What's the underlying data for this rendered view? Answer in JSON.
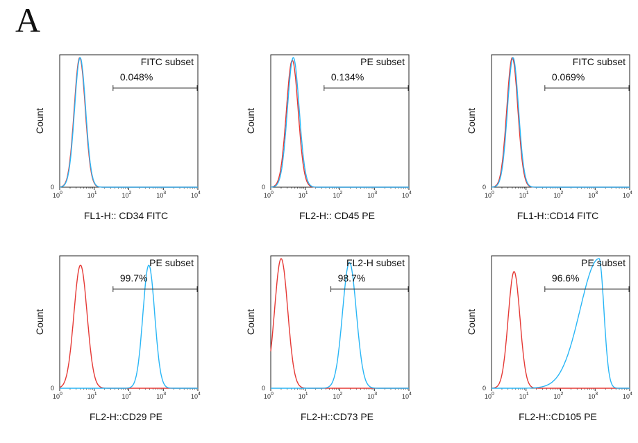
{
  "figure": {
    "panel_label": "A"
  },
  "colors": {
    "control": "#e53935",
    "sample": "#29b6f6",
    "axis": "#222222",
    "gate": "#333333"
  },
  "chart_data": [
    {
      "type": "line",
      "log_x": true,
      "xlim": [
        1,
        10000
      ],
      "ylim": [
        0,
        1
      ],
      "xlabel": "FL1-H:: CD34 FITC",
      "ylabel": "Count",
      "y_zero_label": "0",
      "x_ticks": [
        {
          "base": "10",
          "exp": "0"
        },
        {
          "base": "10",
          "exp": "1"
        },
        {
          "base": "10",
          "exp": "2"
        },
        {
          "base": "10",
          "exp": "3"
        },
        {
          "base": "10",
          "exp": "4"
        }
      ],
      "gate": {
        "label": "FITC subset",
        "percent": "0.048%",
        "x_start": 35,
        "x_end": 10000
      },
      "series": [
        {
          "role": "control",
          "peak_x": 3.8,
          "peak_height": 1.0,
          "log_width": 0.16
        },
        {
          "role": "sample",
          "peak_x": 3.9,
          "peak_height": 1.0,
          "log_width": 0.16
        }
      ]
    },
    {
      "type": "line",
      "log_x": true,
      "xlim": [
        1,
        10000
      ],
      "ylim": [
        0,
        1
      ],
      "xlabel": "FL2-H:: CD45 PE",
      "ylabel": "Count",
      "y_zero_label": "0",
      "x_ticks": [
        {
          "base": "10",
          "exp": "0"
        },
        {
          "base": "10",
          "exp": "1"
        },
        {
          "base": "10",
          "exp": "2"
        },
        {
          "base": "10",
          "exp": "3"
        },
        {
          "base": "10",
          "exp": "4"
        }
      ],
      "gate": {
        "label": "PE subset",
        "percent": "0.134%",
        "x_start": 35,
        "x_end": 10000
      },
      "series": [
        {
          "role": "control",
          "peak_x": 4.2,
          "peak_height": 0.98,
          "log_width": 0.17
        },
        {
          "role": "sample",
          "peak_x": 4.5,
          "peak_height": 1.0,
          "log_width": 0.17
        }
      ]
    },
    {
      "type": "line",
      "log_x": true,
      "xlim": [
        1,
        10000
      ],
      "ylim": [
        0,
        1
      ],
      "xlabel": "FL1-H::CD14 FITC",
      "ylabel": "Count",
      "y_zero_label": "0",
      "x_ticks": [
        {
          "base": "10",
          "exp": "0"
        },
        {
          "base": "10",
          "exp": "1"
        },
        {
          "base": "10",
          "exp": "2"
        },
        {
          "base": "10",
          "exp": "3"
        },
        {
          "base": "10",
          "exp": "4"
        }
      ],
      "gate": {
        "label": "FITC subset",
        "percent": "0.069%",
        "x_start": 35,
        "x_end": 10000
      },
      "series": [
        {
          "role": "control",
          "peak_x": 4.0,
          "peak_height": 1.0,
          "log_width": 0.16
        },
        {
          "role": "sample",
          "peak_x": 4.2,
          "peak_height": 1.0,
          "log_width": 0.16
        }
      ]
    },
    {
      "type": "line",
      "log_x": true,
      "xlim": [
        1,
        10000
      ],
      "ylim": [
        0,
        1
      ],
      "xlabel": "FL2-H::CD29 PE",
      "ylabel": "Count",
      "y_zero_label": "0",
      "x_ticks": [
        {
          "base": "10",
          "exp": "0"
        },
        {
          "base": "10",
          "exp": "1"
        },
        {
          "base": "10",
          "exp": "2"
        },
        {
          "base": "10",
          "exp": "3"
        },
        {
          "base": "10",
          "exp": "4"
        }
      ],
      "gate": {
        "label": "PE subset",
        "percent": "99.7%",
        "x_start": 35,
        "x_end": 10000
      },
      "series": [
        {
          "role": "control",
          "peak_x": 4.0,
          "peak_height": 0.95,
          "log_width": 0.19
        },
        {
          "role": "sample",
          "peak_x": 380,
          "peak_height": 0.95,
          "log_width": 0.17
        }
      ]
    },
    {
      "type": "line",
      "log_x": true,
      "xlim": [
        1,
        10000
      ],
      "ylim": [
        0,
        1
      ],
      "xlabel": "FL2-H::CD73 PE",
      "ylabel": "Count",
      "y_zero_label": "0",
      "x_ticks": [
        {
          "base": "10",
          "exp": "0"
        },
        {
          "base": "10",
          "exp": "1"
        },
        {
          "base": "10",
          "exp": "2"
        },
        {
          "base": "10",
          "exp": "3"
        },
        {
          "base": "10",
          "exp": "4"
        }
      ],
      "gate": {
        "label": "FL2-H subset",
        "percent": "98.7%",
        "x_start": 55,
        "x_end": 10000
      },
      "series": [
        {
          "role": "control",
          "peak_x": 2.0,
          "peak_height": 1.0,
          "log_width": 0.19
        },
        {
          "role": "sample",
          "peak_x": 190,
          "peak_height": 0.97,
          "log_width": 0.2
        }
      ]
    },
    {
      "type": "line",
      "log_x": true,
      "xlim": [
        1,
        10000
      ],
      "ylim": [
        0,
        1
      ],
      "xlabel": "FL2-H::CD105 PE",
      "ylabel": "Count",
      "y_zero_label": "0",
      "x_ticks": [
        {
          "base": "10",
          "exp": "0"
        },
        {
          "base": "10",
          "exp": "1"
        },
        {
          "base": "10",
          "exp": "2"
        },
        {
          "base": "10",
          "exp": "3"
        },
        {
          "base": "10",
          "exp": "4"
        }
      ],
      "gate": {
        "label": "PE subset",
        "percent": "96.6%",
        "x_start": 35,
        "x_end": 10000
      },
      "series": [
        {
          "role": "control",
          "peak_x": 4.5,
          "peak_height": 0.9,
          "log_width": 0.17
        },
        {
          "role": "sample",
          "peak_x": 1300,
          "peak_height": 1.0,
          "log_width": 0.55
        }
      ]
    }
  ]
}
